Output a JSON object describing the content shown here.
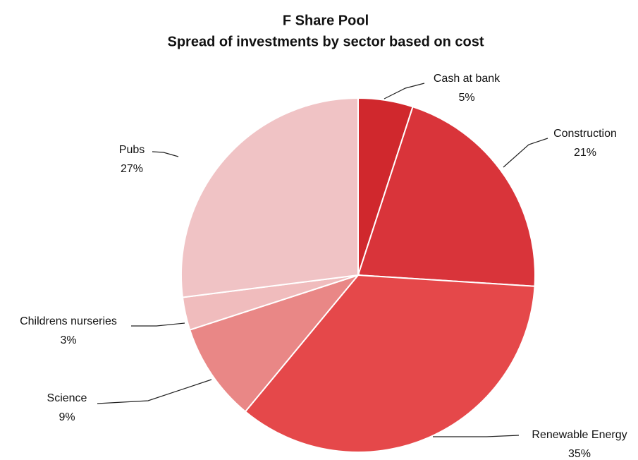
{
  "chart_data": {
    "type": "pie",
    "title": "F Share Pool",
    "subtitle": "Spread of investments by sector based on cost",
    "categories": [
      "Cash at bank",
      "Construction",
      "Renewable Energy",
      "Science",
      "Childrens nurseries",
      "Pubs"
    ],
    "values": [
      5,
      21,
      35,
      9,
      3,
      27
    ],
    "value_labels": [
      "5%",
      "21%",
      "35%",
      "9%",
      "3%",
      "27%"
    ],
    "colors": [
      "#d0282d",
      "#d9343a",
      "#e5484a",
      "#e98786",
      "#f0bcbd",
      "#f0c3c5"
    ]
  }
}
